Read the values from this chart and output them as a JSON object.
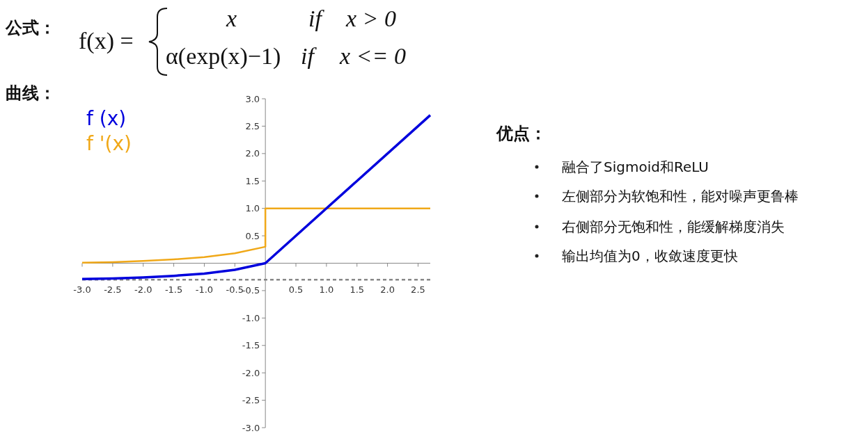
{
  "chart_data": {
    "type": "line",
    "annotations": [
      "公式：",
      "f(x) =",
      "x",
      "if",
      "x > 0",
      "α(exp(x)−1)",
      "if",
      "x <= 0",
      "曲线：",
      "优点：",
      "融合了Sigmoid和ReLU",
      "左侧部分为软饱和性，能对噪声更鲁棒",
      "右侧部分无饱和性，能缓解梯度消失",
      "输出均值为0，收敛速度更快"
    ],
    "xlim": [
      -3.0,
      2.7
    ],
    "xticks": [
      {
        "value": -3,
        "label": "-3.0"
      },
      {
        "value": -2.5,
        "label": "-2.5"
      },
      {
        "value": -2,
        "label": "-2.0"
      },
      {
        "value": -1.5,
        "label": "-1.5"
      },
      {
        "value": -1,
        "label": "-1.0"
      },
      {
        "value": -0.5,
        "label": "-0.5"
      },
      {
        "value": 0.5,
        "label": "0.5"
      },
      {
        "value": 1,
        "label": "1.0"
      },
      {
        "value": 1.5,
        "label": "1.5"
      },
      {
        "value": 2,
        "label": "2.0"
      },
      {
        "value": 2.5,
        "label": "2.5"
      }
    ],
    "ylim": [
      -3.0,
      3.0
    ],
    "yticks": [
      {
        "value": -3,
        "label": "-3.0"
      },
      {
        "value": -2.5,
        "label": "-2.5"
      },
      {
        "value": -2,
        "label": "-2.0"
      },
      {
        "value": -1.5,
        "label": "-1.5"
      },
      {
        "value": -1,
        "label": "-1.0"
      },
      {
        "value": -0.5,
        "label": "-0.5"
      },
      {
        "value": 0.5,
        "label": "0.5"
      },
      {
        "value": 1,
        "label": "1.0"
      },
      {
        "value": 1.5,
        "label": "1.5"
      },
      {
        "value": 2,
        "label": "2.0"
      },
      {
        "value": 2.5,
        "label": "2.5"
      },
      {
        "value": 3,
        "label": "3.0"
      }
    ],
    "legend": "top left",
    "ref_lines": [
      {
        "axis": "y",
        "value": -0.3,
        "color": "#888888",
        "line_style": "dashed"
      }
    ],
    "series": [
      {
        "name": "f (x)",
        "color": "#0000dd",
        "x": [
          -3,
          -2.5,
          -2,
          -1.5,
          -1,
          -0.5,
          0,
          2.7
        ],
        "values": [
          -0.29,
          -0.28,
          -0.26,
          -0.23,
          -0.19,
          -0.12,
          0,
          2.7
        ]
      },
      {
        "name": "f '(x)",
        "color": "#f0a818",
        "x": [
          -3,
          -2.5,
          -2,
          -1.5,
          -1,
          -0.5,
          0,
          0,
          2.7
        ],
        "values": [
          0.01,
          0.02,
          0.04,
          0.07,
          0.11,
          0.18,
          0.3,
          1,
          1
        ]
      }
    ]
  }
}
